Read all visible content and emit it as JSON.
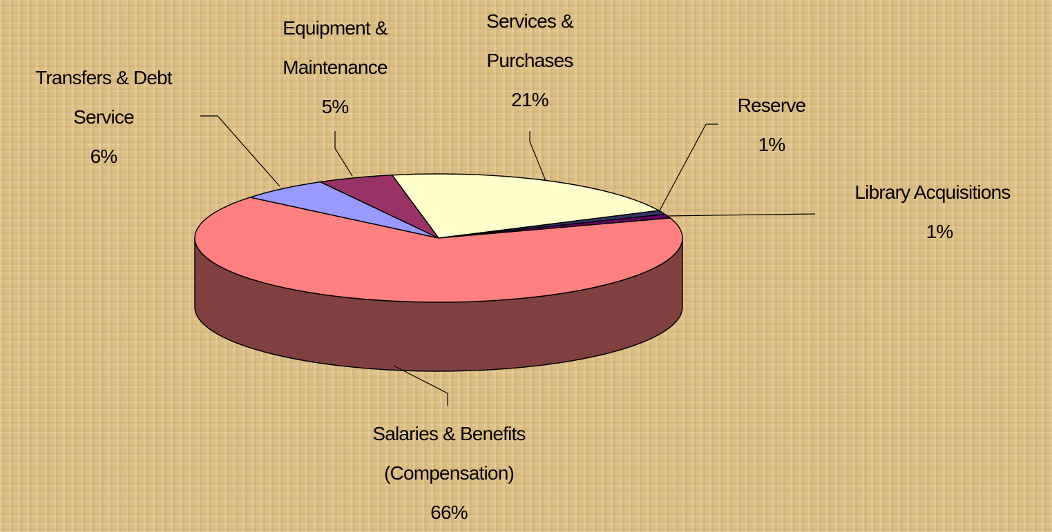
{
  "chart_data": {
    "type": "pie3d",
    "categories": [
      "Services & Purchases",
      "Reserve",
      "Library Acquisitions",
      "Salaries & Benefits (Compensation)",
      "Transfers & Debt Service",
      "Equipment & Maintenance"
    ],
    "values": [
      21,
      1,
      1,
      66,
      6,
      5
    ],
    "value_labels": [
      "21%",
      "1%",
      "1%",
      "66%",
      "6%",
      "5%"
    ],
    "colors": [
      "#ffffcc",
      "#333366",
      "#660066",
      "#ff8080",
      "#9999ff",
      "#993366"
    ]
  }
}
